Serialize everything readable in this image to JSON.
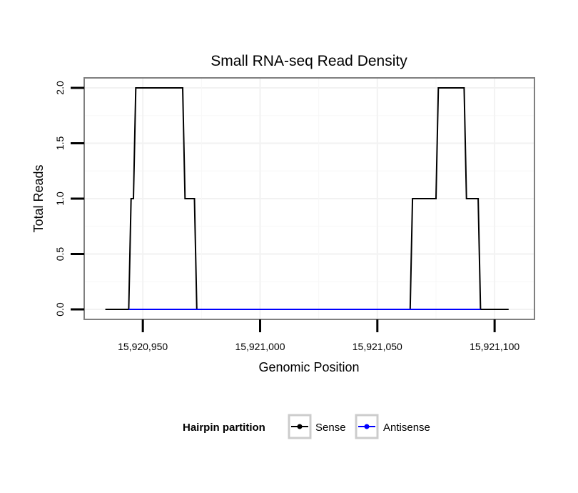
{
  "chart_data": {
    "type": "line",
    "title": "Small RNA-seq Read Density",
    "xlabel": "Genomic Position",
    "ylabel": "Total Reads",
    "xlim": [
      15920925,
      15921117
    ],
    "ylim": [
      -0.09,
      2.09
    ],
    "x_ticks": [
      15920950,
      15921000,
      15921050,
      15921100
    ],
    "x_tick_labels": [
      "15,920,950",
      "15,921,000",
      "15,921,050",
      "15,921,100"
    ],
    "y_ticks": [
      0,
      0.5,
      1,
      1.5,
      2
    ],
    "y_tick_labels": [
      "0.0",
      "0.5",
      "1.0",
      "1.5",
      "2.0"
    ],
    "grid": true,
    "legend": {
      "title": "Hairpin partition",
      "position": "bottom",
      "entries": [
        "Sense",
        "Antisense"
      ]
    },
    "series": [
      {
        "name": "Sense",
        "color": "#000000",
        "x": [
          15920934,
          15920944,
          15920945,
          15920946,
          15920947,
          15920967,
          15920968,
          15920972,
          15920973,
          15921064,
          15921065,
          15921075,
          15921076,
          15921087,
          15921088,
          15921093,
          15921094,
          15921106
        ],
        "y": [
          0,
          0,
          1,
          1,
          2,
          2,
          1,
          1,
          0,
          0,
          1,
          1,
          2,
          2,
          1,
          1,
          0,
          0
        ]
      },
      {
        "name": "Antisense",
        "color": "#0000ff",
        "x": [
          15920944,
          15920973,
          15921064,
          15921094
        ],
        "y": [
          0,
          0,
          0,
          0
        ]
      }
    ]
  }
}
